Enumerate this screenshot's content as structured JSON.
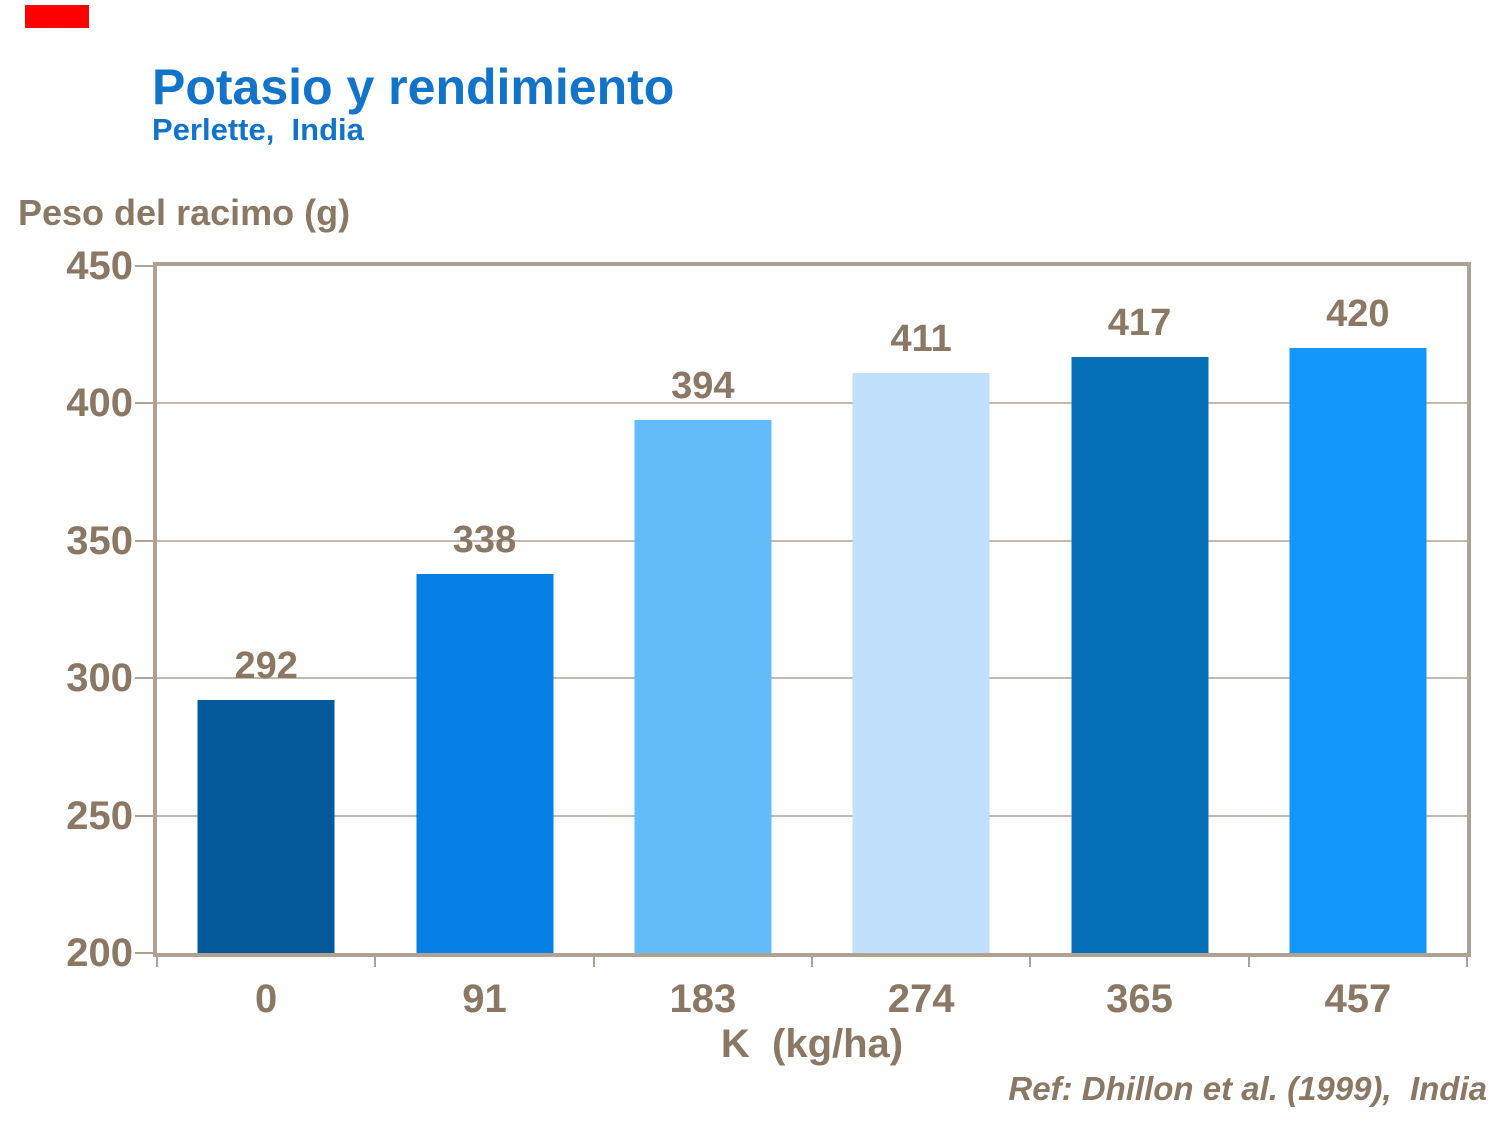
{
  "header": {
    "title": "Potasio y rendimiento",
    "subtitle": "Perlette,  India"
  },
  "chart_data": {
    "type": "bar",
    "title": "Potasio y rendimiento",
    "subtitle": "Perlette, India",
    "categories": [
      "0",
      "91",
      "183",
      "274",
      "365",
      "457"
    ],
    "values": [
      292,
      338,
      394,
      411,
      417,
      420
    ],
    "bar_colors": [
      "#04599B",
      "#0780E6",
      "#63BCFA",
      "#C0E0FB",
      "#0570B8",
      "#1296FA"
    ],
    "xlabel": "K  (kg/ha)",
    "ylabel": "Peso del racimo (g)",
    "ylim": [
      200,
      450
    ],
    "yticks": [
      200,
      250,
      300,
      350,
      400,
      450
    ],
    "grid": true,
    "legend": false
  },
  "footer": {
    "reference": "Ref: Dhillon et al. (1999),  India"
  },
  "colors": {
    "title_blue": "#1274C8",
    "axis_text_brown": "#8A7864",
    "frame_tan": "#AFA294",
    "gridline_tan": "#C4B9AD",
    "corner_marker_red": "#FF0000"
  }
}
